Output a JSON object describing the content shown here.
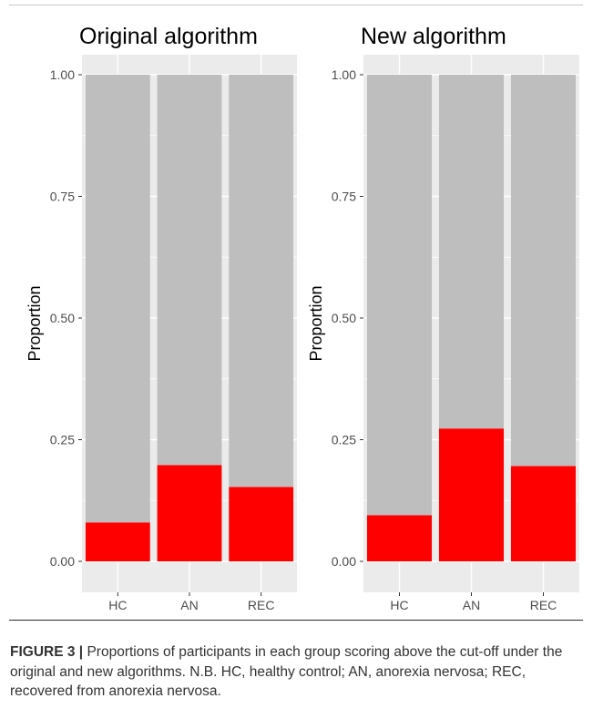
{
  "chart_data": [
    {
      "type": "bar",
      "stacked": true,
      "title": "Original algorithm",
      "xlabel": "",
      "ylabel": "Proportion",
      "ylim": [
        0,
        1
      ],
      "yticks": [
        "0.00",
        "0.25",
        "0.50",
        "0.75",
        "1.00"
      ],
      "categories": [
        "HC",
        "AN",
        "REC"
      ],
      "series": [
        {
          "color": "#ff0000",
          "values": [
            0.08,
            0.198,
            0.153
          ]
        },
        {
          "color": "#bebebe",
          "values": [
            0.92,
            0.802,
            0.847
          ]
        }
      ],
      "grid": true,
      "legend": "none"
    },
    {
      "type": "bar",
      "stacked": true,
      "title": "New algorithm",
      "xlabel": "",
      "ylabel": "Proportion",
      "ylim": [
        0,
        1
      ],
      "yticks": [
        "0.00",
        "0.25",
        "0.50",
        "0.75",
        "1.00"
      ],
      "categories": [
        "HC",
        "AN",
        "REC"
      ],
      "series": [
        {
          "color": "#ff0000",
          "values": [
            0.095,
            0.273,
            0.196
          ]
        },
        {
          "color": "#bebebe",
          "values": [
            0.905,
            0.727,
            0.804
          ]
        }
      ],
      "grid": true,
      "legend": "none"
    }
  ],
  "caption": {
    "label": "FIGURE 3 |",
    "text": "Proportions of participants in each group scoring above the cut-off under the original and new algorithms. N.B. HC, healthy control; AN, anorexia nervosa; REC, recovered from anorexia nervosa."
  },
  "colors": {
    "panel_background": "#ebebeb",
    "gridline": "#ffffff",
    "tick_text": "#4d4d4d",
    "title_text": "#000000"
  }
}
